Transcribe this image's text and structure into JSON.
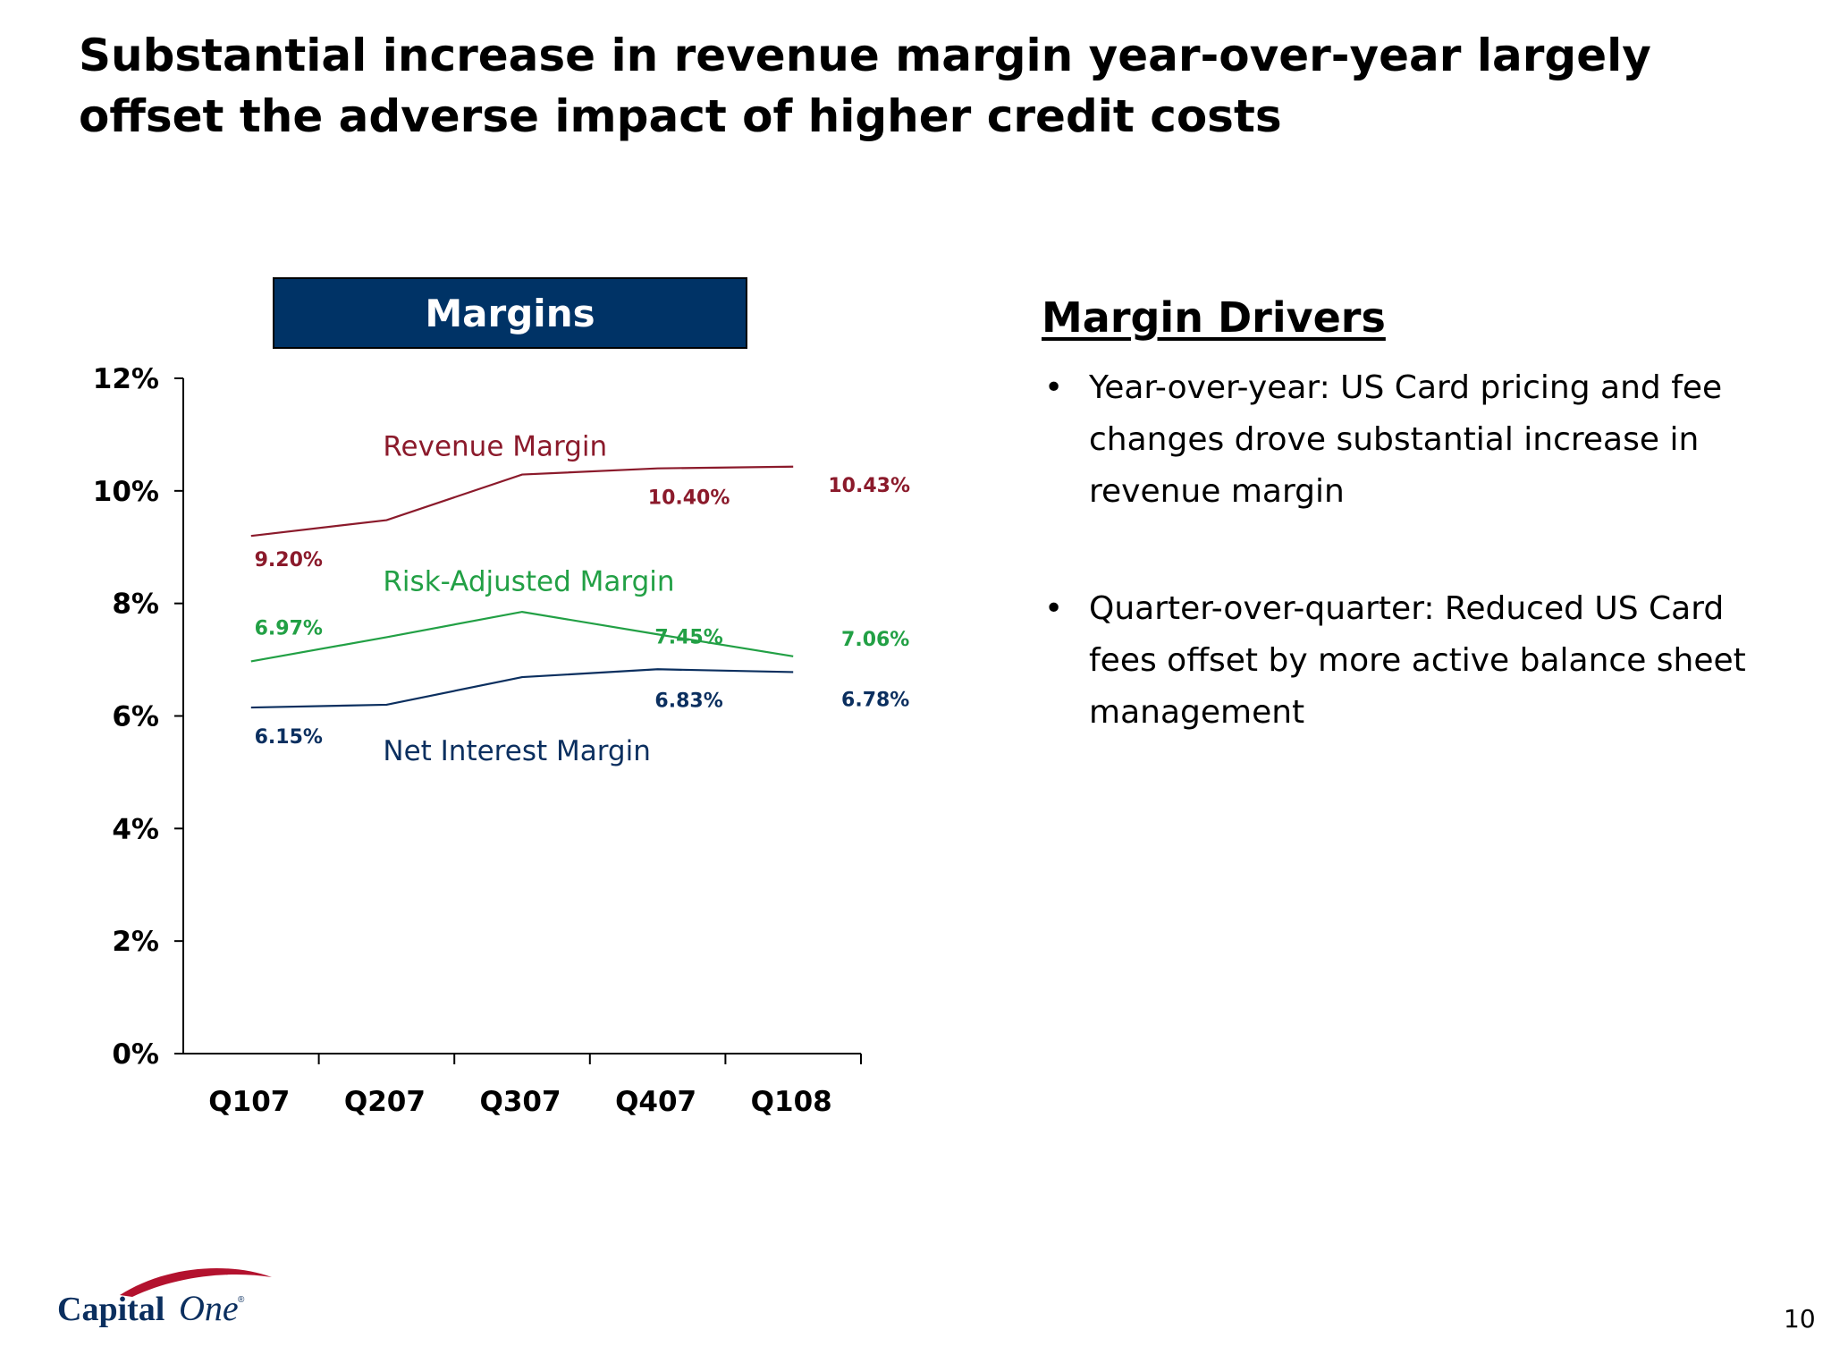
{
  "slide": {
    "title": "Substantial increase in revenue margin year-over-year largely offset the adverse impact of higher credit costs",
    "page_number": "10"
  },
  "chart_header": "Margins",
  "margin_drivers": {
    "heading": "Margin Drivers",
    "bullets": [
      "Year-over-year: US Card pricing and fee changes drove substantial increase in revenue margin",
      "Quarter-over-quarter: Reduced US Card fees offset by more active balance sheet management"
    ]
  },
  "logo": {
    "text_capital": "Capital",
    "text_one": "One",
    "trademark": "®"
  },
  "chart_data": {
    "type": "line",
    "categories": [
      "Q107",
      "Q207",
      "Q307",
      "Q407",
      "Q108"
    ],
    "ylim": [
      0,
      12
    ],
    "yticks": [
      "0%",
      "2%",
      "4%",
      "6%",
      "8%",
      "10%",
      "12%"
    ],
    "grid": false,
    "series": [
      {
        "name": "Revenue Margin",
        "color": "#8B1A2B",
        "values": [
          9.2,
          9.48,
          10.29,
          10.4,
          10.43
        ],
        "labels": [
          "9.20%",
          "",
          "",
          "10.40%",
          "10.43%"
        ]
      },
      {
        "name": "Risk-Adjusted Margin",
        "color": "#22A045",
        "values": [
          6.97,
          7.4,
          7.85,
          7.45,
          7.06
        ],
        "labels": [
          "6.97%",
          "",
          "",
          "7.45%",
          "7.06%"
        ]
      },
      {
        "name": "Net Interest Margin",
        "color": "#0B2F5F",
        "values": [
          6.15,
          6.2,
          6.69,
          6.83,
          6.78
        ],
        "labels": [
          "6.15%",
          "",
          "",
          "6.83%",
          "6.78%"
        ]
      }
    ]
  }
}
